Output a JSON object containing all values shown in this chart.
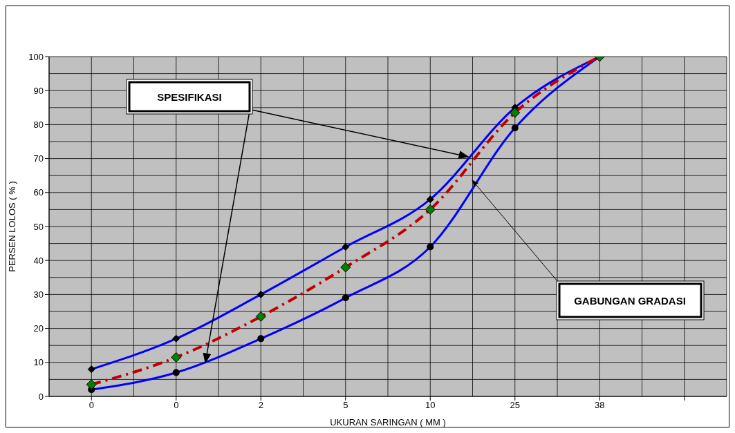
{
  "chart_data": {
    "type": "line",
    "xlabel": "UKURAN   SARINGAN ( MM )",
    "ylabel": "PERSEN  LOLOS ( % )",
    "categories": [
      "0",
      "0",
      "2",
      "5",
      "10",
      "25",
      "38",
      null
    ],
    "series": [
      {
        "name": null,
        "color": "#0000ff",
        "marker": "diamond",
        "line_style": "solid",
        "values": [
          8,
          17,
          30,
          44,
          58,
          85,
          100,
          null
        ]
      },
      {
        "name": null,
        "color": "#0000ff",
        "marker": "circle",
        "line_style": "solid",
        "values": [
          2,
          7,
          17,
          29,
          44,
          79,
          100,
          null
        ]
      },
      {
        "name": null,
        "color": "#c00000",
        "marker": "diamond",
        "line_style": "dashed",
        "values": [
          3.5,
          11.5,
          23.5,
          38,
          55,
          83.5,
          100,
          null
        ]
      }
    ],
    "ylim": [
      0,
      100
    ],
    "yticks": [
      0,
      10,
      20,
      30,
      40,
      50,
      60,
      70,
      80,
      90,
      100
    ],
    "grid": true,
    "legend": false,
    "annotations": [
      "SPESIFIKASI",
      "GABUNGAN GRADASI"
    ]
  }
}
